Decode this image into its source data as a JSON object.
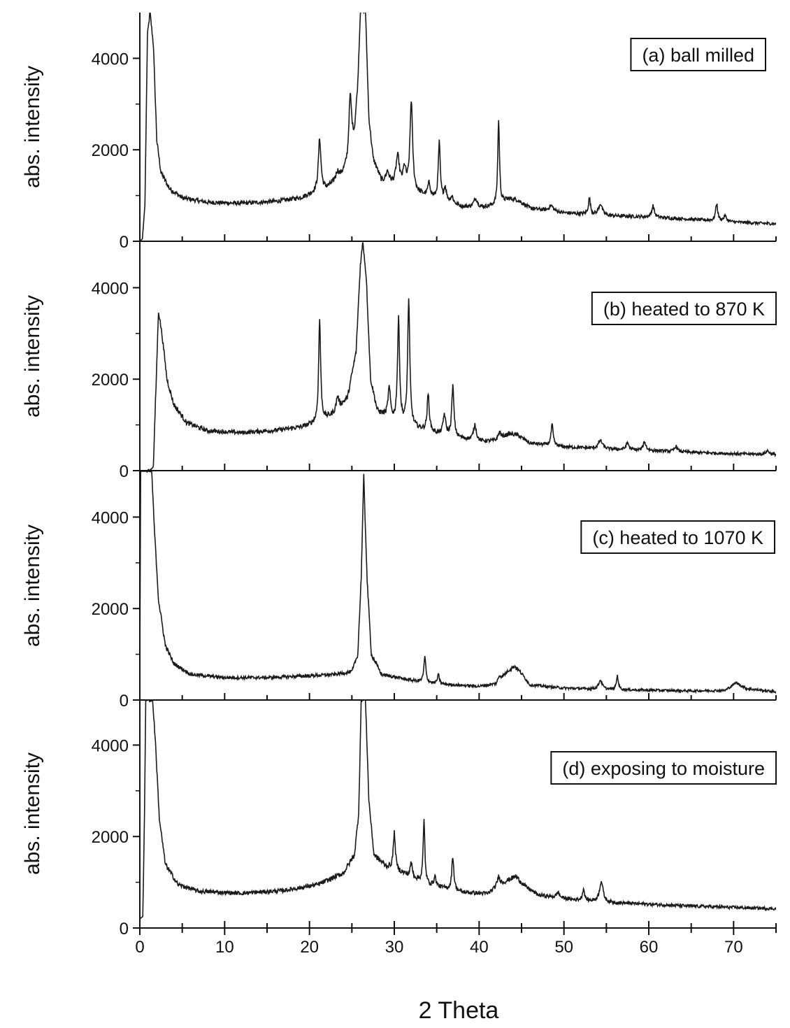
{
  "chart_data": {
    "type": "line",
    "xlabel": "2 Theta",
    "xlim": [
      0,
      75
    ],
    "x_ticks": [
      0,
      10,
      20,
      30,
      40,
      50,
      60,
      70
    ],
    "panels": [
      {
        "label": "(a) ball milled",
        "ylabel": "abs. intensity",
        "ylim": [
          0,
          5000
        ],
        "y_ticks": [
          0,
          2000,
          4000
        ],
        "baseline": [
          [
            0,
            0
          ],
          [
            0.3,
            50
          ],
          [
            0.6,
            800
          ],
          [
            0.9,
            4500
          ],
          [
            1.2,
            5000
          ],
          [
            1.6,
            4300
          ],
          [
            2.0,
            2200
          ],
          [
            2.5,
            1500
          ],
          [
            3.5,
            1150
          ],
          [
            5,
            950
          ],
          [
            8,
            850
          ],
          [
            12,
            830
          ],
          [
            16,
            870
          ],
          [
            19,
            950
          ],
          [
            20.5,
            1050
          ],
          [
            22,
            1150
          ],
          [
            23.5,
            1350
          ],
          [
            24.5,
            1650
          ],
          [
            25.3,
            2300
          ],
          [
            25.7,
            3400
          ],
          [
            26.0,
            5000
          ],
          [
            26.6,
            5000
          ],
          [
            27.0,
            2700
          ],
          [
            27.5,
            1800
          ],
          [
            28.5,
            1300
          ],
          [
            30,
            1200
          ],
          [
            32,
            1100
          ],
          [
            34,
            950
          ],
          [
            36,
            850
          ],
          [
            38,
            750
          ],
          [
            40,
            720
          ],
          [
            42,
            780
          ],
          [
            43.5,
            920
          ],
          [
            44.5,
            900
          ],
          [
            46,
            720
          ],
          [
            50,
            620
          ],
          [
            55,
            560
          ],
          [
            60,
            530
          ],
          [
            65,
            480
          ],
          [
            70,
            420
          ],
          [
            75,
            380
          ]
        ],
        "peaks": [
          {
            "x": 21.2,
            "h": 1150,
            "w": 0.18
          },
          {
            "x": 23.3,
            "h": 200,
            "w": 0.25
          },
          {
            "x": 24.8,
            "h": 1300,
            "w": 0.2
          },
          {
            "x": 29.2,
            "h": 250,
            "w": 0.25
          },
          {
            "x": 30.4,
            "h": 650,
            "w": 0.25
          },
          {
            "x": 31.2,
            "h": 400,
            "w": 0.2
          },
          {
            "x": 32.0,
            "h": 1950,
            "w": 0.18
          },
          {
            "x": 34.1,
            "h": 300,
            "w": 0.2
          },
          {
            "x": 35.3,
            "h": 1250,
            "w": 0.14
          },
          {
            "x": 36.0,
            "h": 300,
            "w": 0.18
          },
          {
            "x": 36.8,
            "h": 150,
            "w": 0.2
          },
          {
            "x": 39.6,
            "h": 200,
            "w": 0.3
          },
          {
            "x": 42.3,
            "h": 1850,
            "w": 0.12
          },
          {
            "x": 48.5,
            "h": 120,
            "w": 0.3
          },
          {
            "x": 53.0,
            "h": 350,
            "w": 0.15
          },
          {
            "x": 54.3,
            "h": 250,
            "w": 0.25
          },
          {
            "x": 60.5,
            "h": 250,
            "w": 0.18
          },
          {
            "x": 68.0,
            "h": 380,
            "w": 0.15
          },
          {
            "x": 69.0,
            "h": 120,
            "w": 0.2
          }
        ]
      },
      {
        "label": "(b) heated to 870 K",
        "ylabel": "abs. intensity",
        "ylim": [
          0,
          5000
        ],
        "y_ticks": [
          0,
          2000,
          4000
        ],
        "baseline": [
          [
            0,
            0
          ],
          [
            1.2,
            0
          ],
          [
            1.6,
            100
          ],
          [
            1.9,
            1800
          ],
          [
            2.2,
            3500
          ],
          [
            2.6,
            3000
          ],
          [
            3.2,
            2000
          ],
          [
            4,
            1450
          ],
          [
            5.5,
            1050
          ],
          [
            8,
            870
          ],
          [
            12,
            830
          ],
          [
            16,
            880
          ],
          [
            19,
            950
          ],
          [
            21,
            1050
          ],
          [
            23,
            1250
          ],
          [
            24.5,
            1600
          ],
          [
            25.5,
            2600
          ],
          [
            26.0,
            4500
          ],
          [
            26.3,
            5000
          ],
          [
            26.7,
            4200
          ],
          [
            27.2,
            2000
          ],
          [
            28,
            1300
          ],
          [
            30,
            1050
          ],
          [
            33,
            900
          ],
          [
            36,
            760
          ],
          [
            40,
            640
          ],
          [
            42,
            650
          ],
          [
            43.5,
            800
          ],
          [
            44.5,
            780
          ],
          [
            46,
            600
          ],
          [
            50,
            520
          ],
          [
            55,
            470
          ],
          [
            60,
            440
          ],
          [
            65,
            400
          ],
          [
            70,
            370
          ],
          [
            75,
            350
          ]
        ],
        "peaks": [
          {
            "x": 21.2,
            "h": 2250,
            "w": 0.14
          },
          {
            "x": 23.3,
            "h": 300,
            "w": 0.2
          },
          {
            "x": 29.4,
            "h": 650,
            "w": 0.18
          },
          {
            "x": 30.5,
            "h": 2250,
            "w": 0.15
          },
          {
            "x": 31.7,
            "h": 2750,
            "w": 0.15
          },
          {
            "x": 34.0,
            "h": 800,
            "w": 0.15
          },
          {
            "x": 35.9,
            "h": 450,
            "w": 0.18
          },
          {
            "x": 36.9,
            "h": 1100,
            "w": 0.15
          },
          {
            "x": 39.5,
            "h": 350,
            "w": 0.2
          },
          {
            "x": 42.4,
            "h": 150,
            "w": 0.2
          },
          {
            "x": 48.6,
            "h": 450,
            "w": 0.15
          },
          {
            "x": 54.3,
            "h": 180,
            "w": 0.3
          },
          {
            "x": 57.5,
            "h": 150,
            "w": 0.2
          },
          {
            "x": 59.5,
            "h": 180,
            "w": 0.2
          },
          {
            "x": 63.2,
            "h": 120,
            "w": 0.2
          },
          {
            "x": 74.0,
            "h": 80,
            "w": 0.25
          }
        ]
      },
      {
        "label": "(c) heated to 1070 K",
        "ylabel": "abs. intensity",
        "ylim": [
          0,
          5000
        ],
        "y_ticks": [
          0,
          2000,
          4000
        ],
        "baseline": [
          [
            0,
            800
          ],
          [
            0.1,
            5000
          ],
          [
            1.4,
            5000
          ],
          [
            1.7,
            3800
          ],
          [
            2.2,
            2200
          ],
          [
            3,
            1200
          ],
          [
            4,
            800
          ],
          [
            6,
            560
          ],
          [
            10,
            490
          ],
          [
            15,
            490
          ],
          [
            20,
            530
          ],
          [
            23,
            560
          ],
          [
            25,
            620
          ],
          [
            25.7,
            1000
          ],
          [
            26.1,
            2700
          ],
          [
            26.4,
            4900
          ],
          [
            26.8,
            2600
          ],
          [
            27.3,
            1000
          ],
          [
            28.5,
            560
          ],
          [
            32,
            430
          ],
          [
            35,
            350
          ],
          [
            40,
            300
          ],
          [
            42,
            350
          ],
          [
            43.5,
            650
          ],
          [
            44.2,
            740
          ],
          [
            45,
            580
          ],
          [
            46,
            330
          ],
          [
            50,
            260
          ],
          [
            55,
            230
          ],
          [
            60,
            215
          ],
          [
            65,
            200
          ],
          [
            69,
            210
          ],
          [
            70.3,
            380
          ],
          [
            71.5,
            250
          ],
          [
            75,
            180
          ]
        ],
        "peaks": [
          {
            "x": 33.6,
            "h": 550,
            "w": 0.14
          },
          {
            "x": 35.2,
            "h": 200,
            "w": 0.15
          },
          {
            "x": 42.4,
            "h": 100,
            "w": 0.2
          },
          {
            "x": 54.3,
            "h": 200,
            "w": 0.25
          },
          {
            "x": 56.3,
            "h": 300,
            "w": 0.14
          }
        ]
      },
      {
        "label": "(d) exposing to moisture",
        "ylabel": "abs. intensity",
        "ylim": [
          0,
          5000
        ],
        "y_ticks": [
          0,
          2000,
          4000
        ],
        "baseline": [
          [
            0,
            200
          ],
          [
            0.35,
            250
          ],
          [
            0.55,
            2500
          ],
          [
            0.7,
            5000
          ],
          [
            1.5,
            5000
          ],
          [
            1.8,
            4200
          ],
          [
            2.3,
            2400
          ],
          [
            3,
            1400
          ],
          [
            4.5,
            950
          ],
          [
            7,
            800
          ],
          [
            12,
            760
          ],
          [
            17,
            820
          ],
          [
            21,
            950
          ],
          [
            24,
            1200
          ],
          [
            25.3,
            1600
          ],
          [
            25.8,
            2500
          ],
          [
            26.1,
            5000
          ],
          [
            26.6,
            5000
          ],
          [
            27.0,
            2800
          ],
          [
            27.6,
            1600
          ],
          [
            29,
            1350
          ],
          [
            31,
            1200
          ],
          [
            34,
            950
          ],
          [
            38,
            780
          ],
          [
            41,
            750
          ],
          [
            42.5,
            950
          ],
          [
            44.3,
            1130
          ],
          [
            45.5,
            900
          ],
          [
            47,
            720
          ],
          [
            51,
            620
          ],
          [
            55,
            560
          ],
          [
            60,
            520
          ],
          [
            65,
            480
          ],
          [
            70,
            450
          ],
          [
            75,
            420
          ]
        ],
        "peaks": [
          {
            "x": 30.0,
            "h": 800,
            "w": 0.15
          },
          {
            "x": 32.0,
            "h": 300,
            "w": 0.15
          },
          {
            "x": 33.5,
            "h": 1350,
            "w": 0.12
          },
          {
            "x": 34.8,
            "h": 200,
            "w": 0.15
          },
          {
            "x": 36.9,
            "h": 750,
            "w": 0.14
          },
          {
            "x": 42.3,
            "h": 200,
            "w": 0.2
          },
          {
            "x": 49.3,
            "h": 120,
            "w": 0.2
          },
          {
            "x": 52.3,
            "h": 250,
            "w": 0.15
          },
          {
            "x": 54.4,
            "h": 450,
            "w": 0.25
          }
        ]
      }
    ]
  }
}
